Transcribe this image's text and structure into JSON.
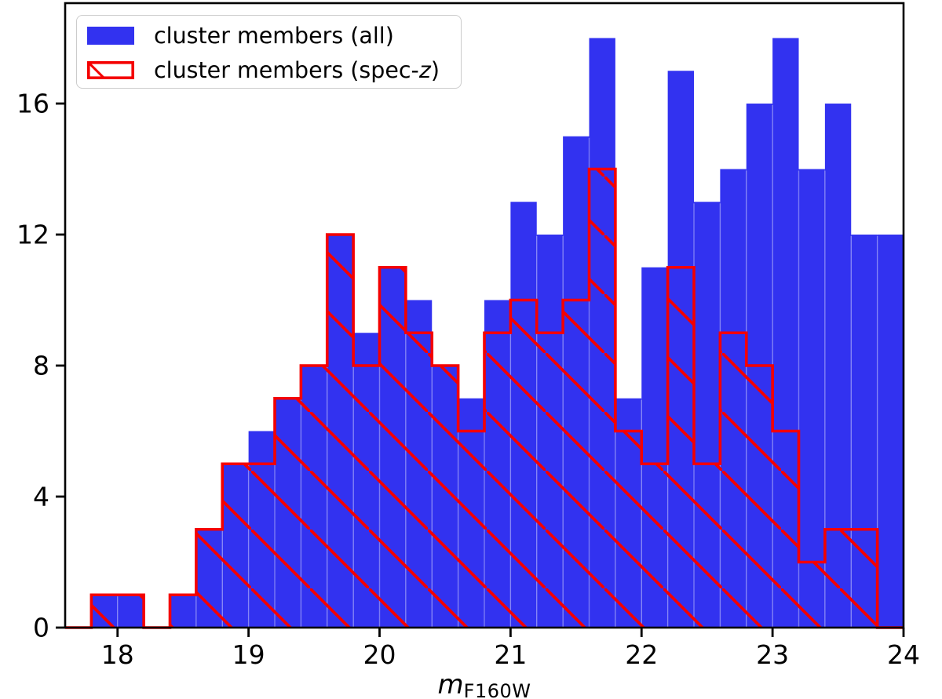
{
  "colors": {
    "blue_fill": "#3232f0",
    "red_line": "#f40000",
    "axis": "#000000",
    "legend_border": "#cccccc",
    "seam": "rgba(255,255,255,0.35)"
  },
  "x_axis_label": {
    "main": "m",
    "sub": "F160W"
  },
  "legend": {
    "items": [
      {
        "swatch": "blue-filled-swatch",
        "label_prefix": "cluster members (all)",
        "label_italic": "",
        "label_suffix": ""
      },
      {
        "swatch": "red-hatched-swatch",
        "label_prefix": "cluster members (spec-",
        "label_italic": "z",
        "label_suffix": ")"
      }
    ]
  },
  "chart_data": {
    "type": "bar",
    "title": "",
    "xlabel": "m_F160W",
    "ylabel": "",
    "grid": false,
    "legend_position": "upper left",
    "xlim": [
      17.6,
      24.0
    ],
    "ylim": [
      0,
      19.06
    ],
    "bins": {
      "start": 17.6,
      "width": 0.2,
      "count": 32
    },
    "x_ticks": [
      "18",
      "19",
      "20",
      "21",
      "22",
      "23",
      "24"
    ],
    "x_tick_values": [
      18,
      19,
      20,
      21,
      22,
      23,
      24
    ],
    "y_ticks": [
      "0",
      "4",
      "8",
      "12",
      "16"
    ],
    "y_tick_values": [
      0,
      4,
      8,
      12,
      16
    ],
    "series": [
      {
        "name": "cluster members (all)",
        "style": "filled",
        "values": [
          0,
          1,
          1,
          0,
          1,
          3,
          5,
          6,
          7,
          8,
          12,
          9,
          11,
          10,
          8,
          7,
          10,
          13,
          12,
          15,
          18,
          7,
          11,
          17,
          13,
          14,
          16,
          18,
          14,
          16,
          12,
          12
        ]
      },
      {
        "name": "cluster members (spec-z)",
        "style": "step-hatched",
        "values": [
          0,
          1,
          1,
          0,
          1,
          3,
          5,
          5,
          7,
          8,
          12,
          8,
          11,
          9,
          8,
          6,
          9,
          10,
          9,
          10,
          14,
          6,
          5,
          11,
          5,
          9,
          8,
          6,
          2,
          3,
          3,
          0
        ]
      }
    ]
  }
}
